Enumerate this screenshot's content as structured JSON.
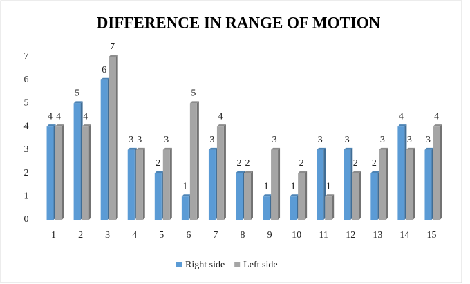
{
  "chart_data": {
    "type": "bar",
    "title": "DIFFERENCE  IN RANGE OF MOTION",
    "categories": [
      "1",
      "2",
      "3",
      "4",
      "5",
      "6",
      "7",
      "8",
      "9",
      "10",
      "11",
      "12",
      "13",
      "14",
      "15"
    ],
    "series": [
      {
        "name": "Right side",
        "color": "#5b9bd5",
        "values": [
          4,
          5,
          6,
          3,
          2,
          1,
          3,
          2,
          1,
          1,
          3,
          3,
          2,
          4,
          3
        ]
      },
      {
        "name": "Left side",
        "color": "#a5a5a5",
        "values": [
          4,
          4,
          7,
          3,
          3,
          5,
          4,
          2,
          3,
          2,
          1,
          2,
          3,
          3,
          4
        ]
      }
    ],
    "ylim": [
      0,
      7
    ],
    "yticks": [
      0,
      1,
      2,
      3,
      4,
      5,
      6,
      7
    ],
    "grid": false,
    "legend": "bottom"
  }
}
